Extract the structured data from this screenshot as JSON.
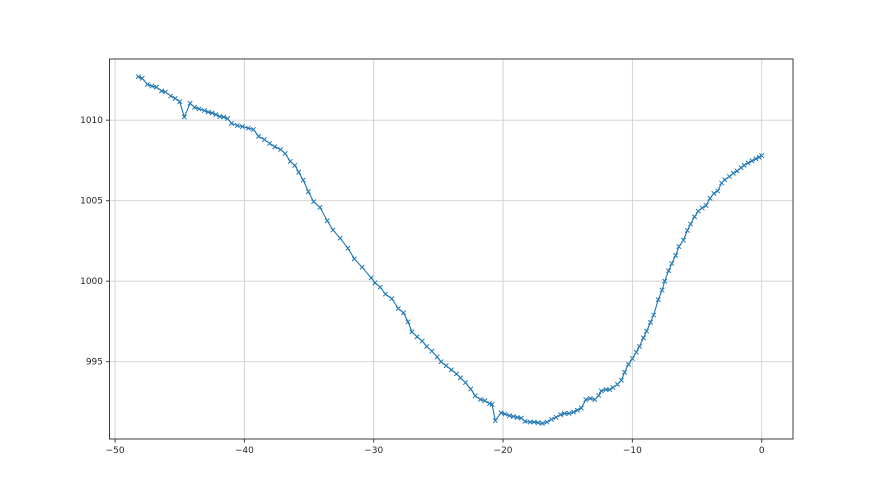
{
  "chart_data": {
    "type": "line",
    "title": "",
    "xlabel": "",
    "ylabel": "",
    "grid": true,
    "legend": false,
    "xlim": [
      -50.43,
      2.42
    ],
    "ylim": [
      990.2,
      1013.8
    ],
    "x_ticks": [
      {
        "value": -50,
        "label": "−50"
      },
      {
        "value": -40,
        "label": "−40"
      },
      {
        "value": -30,
        "label": "−30"
      },
      {
        "value": -20,
        "label": "−20"
      },
      {
        "value": -10,
        "label": "−10"
      },
      {
        "value": 0,
        "label": "0"
      }
    ],
    "y_ticks": [
      {
        "value": 995,
        "label": "995"
      },
      {
        "value": 1000,
        "label": "1000"
      },
      {
        "value": 1005,
        "label": "1005"
      },
      {
        "value": 1010,
        "label": "1010"
      }
    ],
    "series": [
      {
        "name": "trace",
        "color": "#1f77b4",
        "marker": "x",
        "points": [
          [
            -48.2,
            1012.7
          ],
          [
            -47.9,
            1012.6
          ],
          [
            -47.5,
            1012.22
          ],
          [
            -47.15,
            1012.12
          ],
          [
            -46.8,
            1012.05
          ],
          [
            -46.4,
            1011.82
          ],
          [
            -46.1,
            1011.75
          ],
          [
            -45.7,
            1011.5
          ],
          [
            -45.35,
            1011.35
          ],
          [
            -45.0,
            1011.15
          ],
          [
            -44.65,
            1010.2
          ],
          [
            -44.2,
            1011.05
          ],
          [
            -43.85,
            1010.8
          ],
          [
            -43.5,
            1010.7
          ],
          [
            -43.1,
            1010.6
          ],
          [
            -42.8,
            1010.5
          ],
          [
            -42.5,
            1010.45
          ],
          [
            -42.2,
            1010.35
          ],
          [
            -41.9,
            1010.22
          ],
          [
            -41.6,
            1010.2
          ],
          [
            -41.3,
            1010.1
          ],
          [
            -41.0,
            1009.8
          ],
          [
            -40.55,
            1009.67
          ],
          [
            -40.15,
            1009.6
          ],
          [
            -39.7,
            1009.5
          ],
          [
            -39.3,
            1009.42
          ],
          [
            -38.9,
            1009.0
          ],
          [
            -38.45,
            1008.8
          ],
          [
            -38.05,
            1008.55
          ],
          [
            -37.65,
            1008.35
          ],
          [
            -37.2,
            1008.18
          ],
          [
            -36.85,
            1007.93
          ],
          [
            -36.45,
            1007.44
          ],
          [
            -36.1,
            1007.19
          ],
          [
            -35.8,
            1006.77
          ],
          [
            -35.45,
            1006.28
          ],
          [
            -35.05,
            1005.56
          ],
          [
            -34.65,
            1004.94
          ],
          [
            -34.15,
            1004.59
          ],
          [
            -33.6,
            1003.76
          ],
          [
            -33.15,
            1003.18
          ],
          [
            -32.6,
            1002.67
          ],
          [
            -32.0,
            1002.05
          ],
          [
            -31.5,
            1001.39
          ],
          [
            -30.9,
            1000.87
          ],
          [
            -30.2,
            1000.21
          ],
          [
            -29.9,
            999.9
          ],
          [
            -29.5,
            999.63
          ],
          [
            -29.1,
            999.2
          ],
          [
            -28.6,
            998.92
          ],
          [
            -28.1,
            998.3
          ],
          [
            -27.7,
            998.04
          ],
          [
            -27.35,
            997.48
          ],
          [
            -27.05,
            996.86
          ],
          [
            -26.65,
            996.55
          ],
          [
            -26.25,
            996.28
          ],
          [
            -25.9,
            995.95
          ],
          [
            -25.5,
            995.66
          ],
          [
            -25.1,
            995.3
          ],
          [
            -24.8,
            995.0
          ],
          [
            -24.4,
            994.75
          ],
          [
            -24.0,
            994.5
          ],
          [
            -23.6,
            994.25
          ],
          [
            -23.3,
            994.0
          ],
          [
            -22.9,
            993.7
          ],
          [
            -22.5,
            993.3
          ],
          [
            -22.15,
            992.88
          ],
          [
            -21.75,
            992.66
          ],
          [
            -21.4,
            992.58
          ],
          [
            -21.05,
            992.4
          ],
          [
            -20.85,
            992.35
          ],
          [
            -20.6,
            991.34
          ],
          [
            -20.15,
            991.83
          ],
          [
            -19.85,
            991.75
          ],
          [
            -19.5,
            991.65
          ],
          [
            -19.2,
            991.6
          ],
          [
            -18.9,
            991.54
          ],
          [
            -18.6,
            991.5
          ],
          [
            -18.3,
            991.3
          ],
          [
            -17.9,
            991.25
          ],
          [
            -17.6,
            991.25
          ],
          [
            -17.3,
            991.21
          ],
          [
            -16.95,
            991.17
          ],
          [
            -16.6,
            991.25
          ],
          [
            -16.25,
            991.42
          ],
          [
            -15.9,
            991.55
          ],
          [
            -15.55,
            991.71
          ],
          [
            -15.25,
            991.79
          ],
          [
            -14.9,
            991.79
          ],
          [
            -14.55,
            991.87
          ],
          [
            -14.25,
            991.99
          ],
          [
            -13.95,
            992.12
          ],
          [
            -13.6,
            992.65
          ],
          [
            -13.25,
            992.72
          ],
          [
            -12.9,
            992.65
          ],
          [
            -12.6,
            992.9
          ],
          [
            -12.4,
            993.19
          ],
          [
            -12.05,
            993.27
          ],
          [
            -11.75,
            993.27
          ],
          [
            -11.5,
            993.4
          ],
          [
            -11.15,
            993.6
          ],
          [
            -10.85,
            993.85
          ],
          [
            -10.6,
            994.34
          ],
          [
            -10.3,
            994.84
          ],
          [
            -10.0,
            995.2
          ],
          [
            -9.7,
            995.6
          ],
          [
            -9.45,
            995.95
          ],
          [
            -9.15,
            996.48
          ],
          [
            -8.9,
            996.9
          ],
          [
            -8.6,
            997.45
          ],
          [
            -8.35,
            997.9
          ],
          [
            -8.0,
            998.85
          ],
          [
            -7.7,
            999.45
          ],
          [
            -7.5,
            1000.0
          ],
          [
            -7.2,
            1000.65
          ],
          [
            -6.95,
            1001.1
          ],
          [
            -6.65,
            1001.6
          ],
          [
            -6.4,
            1002.15
          ],
          [
            -6.05,
            1002.55
          ],
          [
            -5.75,
            1003.15
          ],
          [
            -5.5,
            1003.55
          ],
          [
            -5.2,
            1004.0
          ],
          [
            -4.9,
            1004.35
          ],
          [
            -4.6,
            1004.55
          ],
          [
            -4.3,
            1004.7
          ],
          [
            -4.0,
            1005.15
          ],
          [
            -3.7,
            1005.45
          ],
          [
            -3.4,
            1005.6
          ],
          [
            -3.1,
            1006.1
          ],
          [
            -2.85,
            1006.3
          ],
          [
            -2.5,
            1006.5
          ],
          [
            -2.2,
            1006.7
          ],
          [
            -1.9,
            1006.85
          ],
          [
            -1.6,
            1007.05
          ],
          [
            -1.35,
            1007.2
          ],
          [
            -1.05,
            1007.35
          ],
          [
            -0.75,
            1007.48
          ],
          [
            -0.45,
            1007.6
          ],
          [
            -0.2,
            1007.7
          ],
          [
            0.0,
            1007.8
          ]
        ]
      }
    ]
  },
  "style": {
    "background": "#ffffff",
    "line_color": "#1f77b4",
    "grid_color": "#cdcdcd",
    "spine_color": "#3c3c3c",
    "tick_label_color": "#262626"
  }
}
